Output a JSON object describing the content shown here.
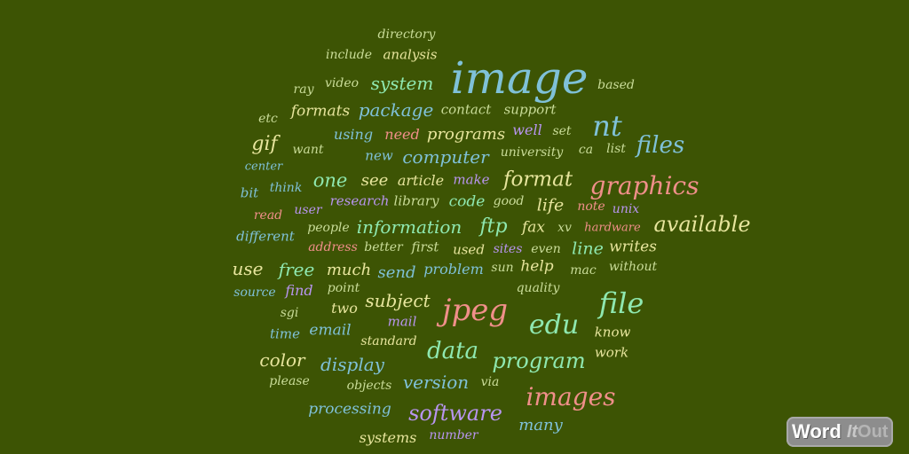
{
  "words": [
    {
      "t": "image",
      "c": "c1"
    },
    {
      "t": "directory",
      "c": "c3"
    },
    {
      "t": "include",
      "c": "c3"
    },
    {
      "t": "analysis",
      "c": "c6"
    },
    {
      "t": "ray",
      "c": "c3"
    },
    {
      "t": "video",
      "c": "c3"
    },
    {
      "t": "system",
      "c": "c4"
    },
    {
      "t": "based",
      "c": "c3"
    },
    {
      "t": "etc",
      "c": "c3"
    },
    {
      "t": "formats",
      "c": "c6"
    },
    {
      "t": "package",
      "c": "c1"
    },
    {
      "t": "contact",
      "c": "c3"
    },
    {
      "t": "support",
      "c": "c3"
    },
    {
      "t": "nt",
      "c": "c1"
    },
    {
      "t": "gif",
      "c": "c6"
    },
    {
      "t": "using",
      "c": "c1"
    },
    {
      "t": "need",
      "c": "c2"
    },
    {
      "t": "programs",
      "c": "c6"
    },
    {
      "t": "well",
      "c": "c5"
    },
    {
      "t": "set",
      "c": "c3"
    },
    {
      "t": "files",
      "c": "c1"
    },
    {
      "t": "want",
      "c": "c3"
    },
    {
      "t": "new",
      "c": "c1"
    },
    {
      "t": "computer",
      "c": "c1"
    },
    {
      "t": "university",
      "c": "c3"
    },
    {
      "t": "ca",
      "c": "c3"
    },
    {
      "t": "list",
      "c": "c3"
    },
    {
      "t": "center",
      "c": "c1"
    },
    {
      "t": "one",
      "c": "c4"
    },
    {
      "t": "see",
      "c": "c6"
    },
    {
      "t": "article",
      "c": "c6"
    },
    {
      "t": "make",
      "c": "c5"
    },
    {
      "t": "format",
      "c": "c6"
    },
    {
      "t": "bit",
      "c": "c1"
    },
    {
      "t": "think",
      "c": "c1"
    },
    {
      "t": "graphics",
      "c": "c2"
    },
    {
      "t": "research",
      "c": "c5"
    },
    {
      "t": "library",
      "c": "c3"
    },
    {
      "t": "code",
      "c": "c4"
    },
    {
      "t": "good",
      "c": "c3"
    },
    {
      "t": "life",
      "c": "c6"
    },
    {
      "t": "note",
      "c": "c2"
    },
    {
      "t": "unix",
      "c": "c5"
    },
    {
      "t": "read",
      "c": "c2"
    },
    {
      "t": "user",
      "c": "c5"
    },
    {
      "t": "available",
      "c": "c6"
    },
    {
      "t": "different",
      "c": "c1"
    },
    {
      "t": "people",
      "c": "c3"
    },
    {
      "t": "information",
      "c": "c4"
    },
    {
      "t": "ftp",
      "c": "c4"
    },
    {
      "t": "fax",
      "c": "c6"
    },
    {
      "t": "xv",
      "c": "c3"
    },
    {
      "t": "hardware",
      "c": "c2"
    },
    {
      "t": "address",
      "c": "c2"
    },
    {
      "t": "better",
      "c": "c3"
    },
    {
      "t": "first",
      "c": "c3"
    },
    {
      "t": "used",
      "c": "c6"
    },
    {
      "t": "sites",
      "c": "c5"
    },
    {
      "t": "even",
      "c": "c3"
    },
    {
      "t": "line",
      "c": "c4"
    },
    {
      "t": "writes",
      "c": "c6"
    },
    {
      "t": "use",
      "c": "c6"
    },
    {
      "t": "free",
      "c": "c4"
    },
    {
      "t": "much",
      "c": "c6"
    },
    {
      "t": "send",
      "c": "c1"
    },
    {
      "t": "problem",
      "c": "c1"
    },
    {
      "t": "sun",
      "c": "c3"
    },
    {
      "t": "help",
      "c": "c6"
    },
    {
      "t": "mac",
      "c": "c3"
    },
    {
      "t": "without",
      "c": "c3"
    },
    {
      "t": "source",
      "c": "c1"
    },
    {
      "t": "find",
      "c": "c5"
    },
    {
      "t": "point",
      "c": "c3"
    },
    {
      "t": "quality",
      "c": "c3"
    },
    {
      "t": "subject",
      "c": "c6"
    },
    {
      "t": "jpeg",
      "c": "c2"
    },
    {
      "t": "file",
      "c": "c4"
    },
    {
      "t": "sgi",
      "c": "c3"
    },
    {
      "t": "two",
      "c": "c6"
    },
    {
      "t": "mail",
      "c": "c5"
    },
    {
      "t": "edu",
      "c": "c4"
    },
    {
      "t": "know",
      "c": "c6"
    },
    {
      "t": "time",
      "c": "c1"
    },
    {
      "t": "email",
      "c": "c1"
    },
    {
      "t": "standard",
      "c": "c6"
    },
    {
      "t": "data",
      "c": "c4"
    },
    {
      "t": "work",
      "c": "c6"
    },
    {
      "t": "color",
      "c": "c6"
    },
    {
      "t": "display",
      "c": "c1"
    },
    {
      "t": "program",
      "c": "c4"
    },
    {
      "t": "please",
      "c": "c3"
    },
    {
      "t": "objects",
      "c": "c3"
    },
    {
      "t": "version",
      "c": "c1"
    },
    {
      "t": "via",
      "c": "c3"
    },
    {
      "t": "images",
      "c": "c2"
    },
    {
      "t": "processing",
      "c": "c1"
    },
    {
      "t": "software",
      "c": "c5"
    },
    {
      "t": "many",
      "c": "c1"
    },
    {
      "t": "systems",
      "c": "c6"
    },
    {
      "t": "number",
      "c": "c5"
    }
  ],
  "logo": {
    "word": "Word",
    "it": "It",
    "out": "Out"
  }
}
